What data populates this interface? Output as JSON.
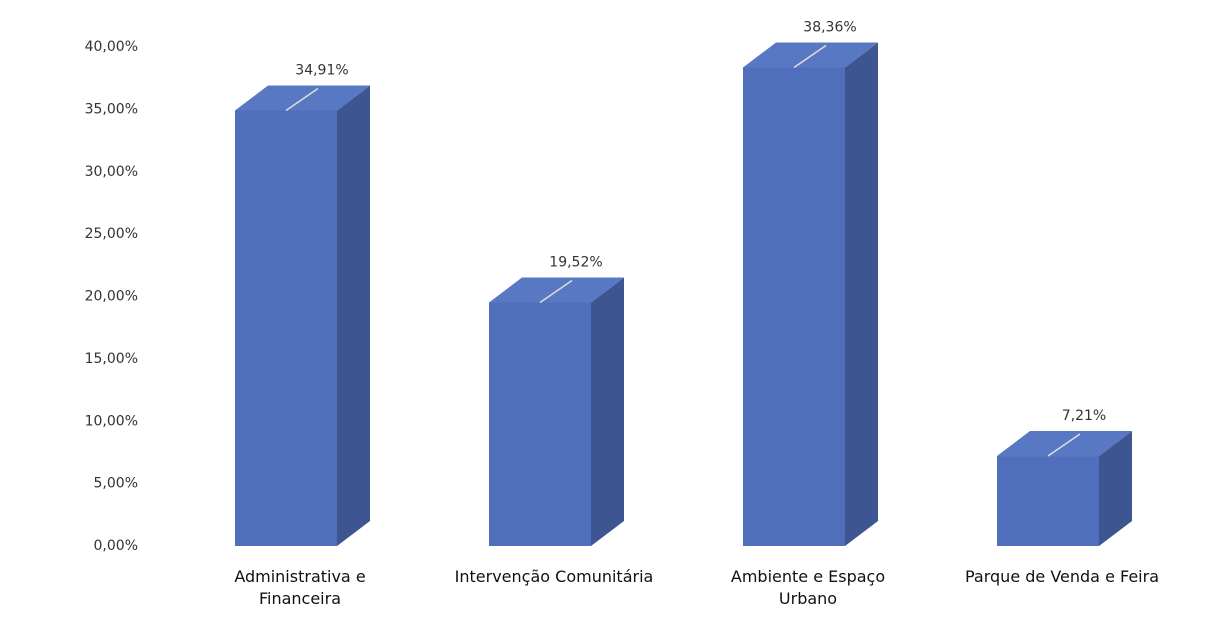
{
  "chart_data": {
    "type": "bar3d",
    "categories": [
      "Administrativa e Financeira",
      "Intervenção Comunitária",
      "Ambiente e Espaço Urbano",
      "Parque de Venda e Feira"
    ],
    "values": [
      34.91,
      19.52,
      38.36,
      7.21
    ],
    "value_labels": [
      "34,91%",
      "19,52%",
      "38,36%",
      "7,21%"
    ],
    "color": "#4f6fbd",
    "ylim": [
      0,
      40
    ],
    "yticks": [
      {
        "value": 0,
        "label": "0,00%"
      },
      {
        "value": 5,
        "label": "5,00%"
      },
      {
        "value": 10,
        "label": "10,00%"
      },
      {
        "value": 15,
        "label": "15,00%"
      },
      {
        "value": 20,
        "label": "20,00%"
      },
      {
        "value": 25,
        "label": "25,00%"
      },
      {
        "value": 30,
        "label": "30,00%"
      },
      {
        "value": 35,
        "label": "35,00%"
      },
      {
        "value": 40,
        "label": "40,00%"
      }
    ]
  }
}
